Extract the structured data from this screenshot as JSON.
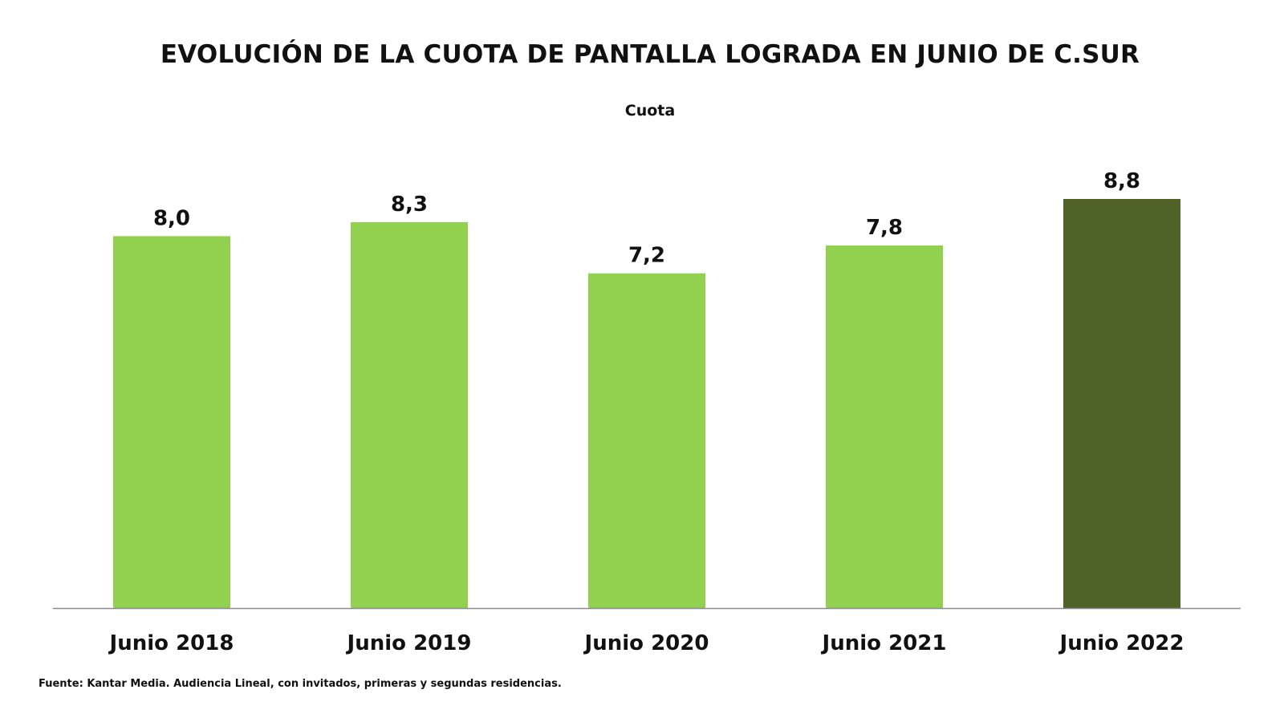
{
  "chart_data": {
    "type": "bar",
    "title": "EVOLUCIÓN DE LA CUOTA DE PANTALLA LOGRADA EN JUNIO DE C.SUR",
    "subtitle": "Cuota",
    "xlabel": "",
    "ylabel": "",
    "categories": [
      "Junio 2018",
      "Junio 2019",
      "Junio 2020",
      "Junio 2021",
      "Junio 2022"
    ],
    "values": [
      8.0,
      8.3,
      7.2,
      7.8,
      8.8
    ],
    "value_labels": [
      "8,0",
      "8,3",
      "7,2",
      "7,8",
      "8,8"
    ],
    "bar_colors": [
      "#92d050",
      "#92d050",
      "#92d050",
      "#92d050",
      "#4f6228"
    ],
    "ylim": [
      0,
      8.8
    ],
    "grid": false,
    "legend": "none",
    "source": "Fuente: Kantar Media. Audiencia Lineal, con invitados, primeras y segundas residencias."
  }
}
